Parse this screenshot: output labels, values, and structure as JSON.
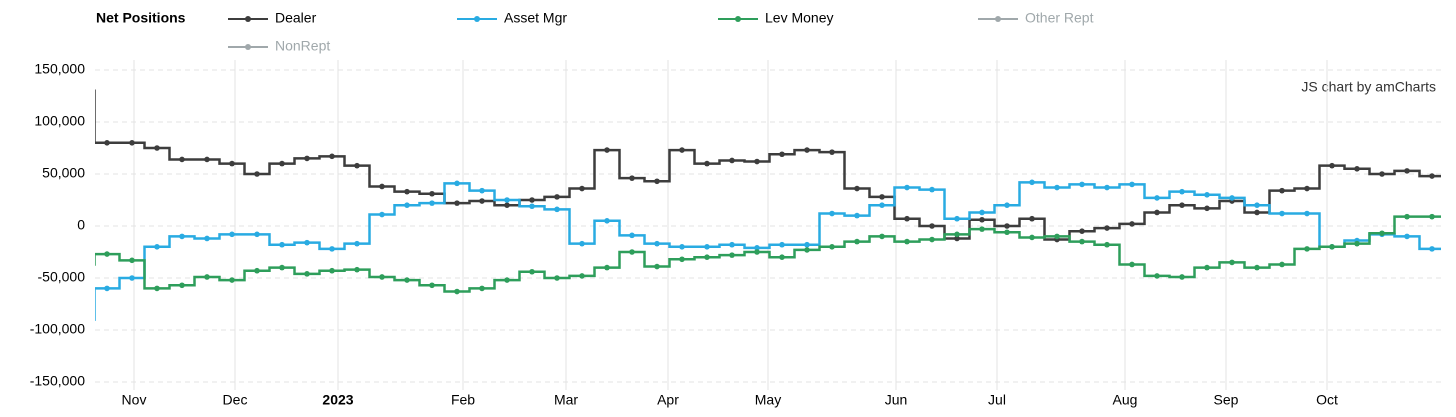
{
  "chart_data": {
    "type": "step",
    "legend_title": "Net Positions",
    "credit": "JS chart by amCharts",
    "x_labels": [
      "Nov",
      "Dec",
      "2023",
      "Feb",
      "Mar",
      "Apr",
      "May",
      "Jun",
      "Jul",
      "Aug",
      "Sep",
      "Oct"
    ],
    "ylim": [
      -150000,
      150000
    ],
    "yticks": [
      {
        "value": -150000,
        "label": "-150,000"
      },
      {
        "value": -100000,
        "label": "-100,000"
      },
      {
        "value": -50000,
        "label": "-50,000"
      },
      0,
      {
        "value": 50000,
        "label": "50,000"
      },
      {
        "value": 100000,
        "label": "100,000"
      },
      {
        "value": 150000,
        "label": "150,000"
      }
    ],
    "grid": true,
    "series": [
      {
        "name": "Dealer",
        "color": "#3d3d3d",
        "values": [
          130000,
          80000,
          80000,
          75000,
          64000,
          64000,
          60000,
          50000,
          60000,
          65000,
          67000,
          58000,
          38000,
          33000,
          31000,
          22000,
          24000,
          20000,
          25000,
          28000,
          36000,
          73000,
          46000,
          43000,
          73000,
          60000,
          63000,
          62000,
          69000,
          73000,
          71000,
          36000,
          28000,
          7000,
          0,
          -12000,
          6000,
          0,
          7000,
          -13000,
          -5000,
          -2000,
          2000,
          13000,
          20000,
          17000,
          24000,
          13000,
          34000,
          36000,
          58000,
          55000,
          50000,
          53000,
          48000
        ]
      },
      {
        "name": "Asset Mgr",
        "color": "#29abe2",
        "values": [
          -90000,
          -60000,
          -50000,
          -20000,
          -10000,
          -12000,
          -8000,
          -8000,
          -18000,
          -16000,
          -22000,
          -17000,
          11000,
          20000,
          22000,
          41000,
          34000,
          25000,
          19000,
          16000,
          -17000,
          5000,
          -9000,
          -17000,
          -20000,
          -20000,
          -18000,
          -21000,
          -18000,
          -18000,
          12000,
          10000,
          20000,
          37000,
          35000,
          7000,
          13000,
          20000,
          42000,
          37000,
          40000,
          37000,
          40000,
          27000,
          33000,
          30000,
          27000,
          20000,
          12000,
          12000,
          -20000,
          -14000,
          -8000,
          -10000,
          -22000
        ]
      },
      {
        "name": "Lev Money",
        "color": "#2e9e5b",
        "values": [
          -37000,
          -27000,
          -33000,
          -60000,
          -57000,
          -49000,
          -52000,
          -43000,
          -40000,
          -46000,
          -43000,
          -42000,
          -49000,
          -52000,
          -57000,
          -63000,
          -60000,
          -52000,
          -44000,
          -50000,
          -48000,
          -40000,
          -25000,
          -39000,
          -32000,
          -30000,
          -28000,
          -25000,
          -30000,
          -23000,
          -20000,
          -15000,
          -10000,
          -15000,
          -13000,
          -8000,
          -3000,
          -6000,
          -11000,
          -10000,
          -15000,
          -18000,
          -37000,
          -48000,
          -49000,
          -40000,
          -35000,
          -40000,
          -37000,
          -22000,
          -20000,
          -17000,
          -7000,
          9000,
          9000
        ]
      }
    ],
    "hidden_series": [
      {
        "name": "Other Rept",
        "color": "#a0a8ab"
      },
      {
        "name": "NonRept",
        "color": "#a0a8ab"
      }
    ]
  }
}
